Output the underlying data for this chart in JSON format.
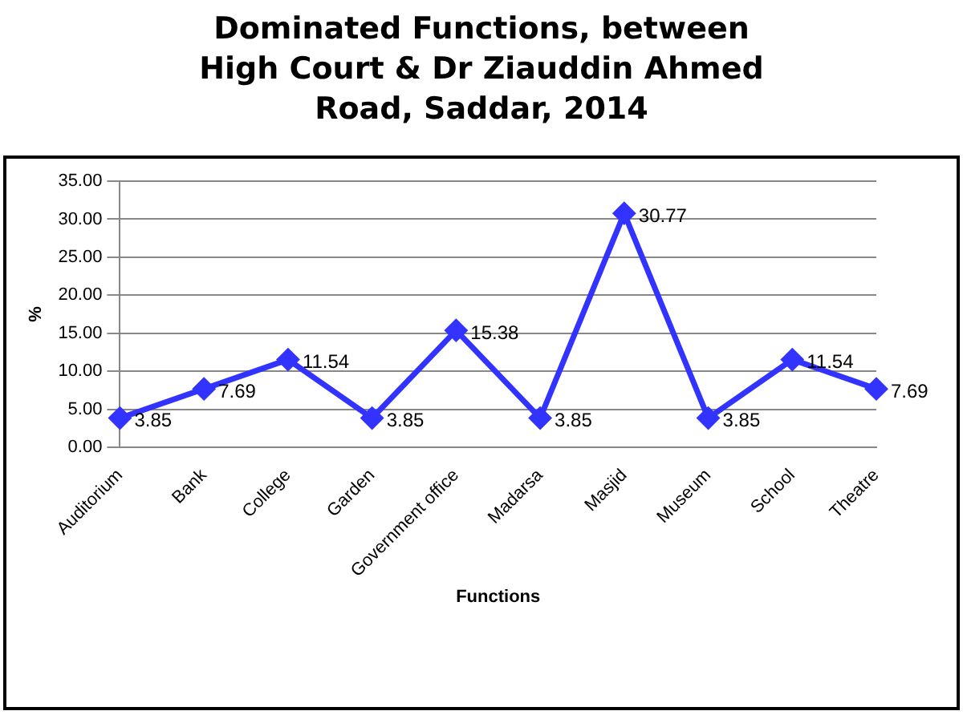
{
  "chart_data": {
    "type": "line",
    "title": "Dominated Functions, between High Court & Dr Ziauddin Ahmed Road, Saddar, 2014",
    "xlabel": "Functions",
    "ylabel": "%",
    "categories": [
      "Auditorium",
      "Bank",
      "College",
      "Garden",
      "Government office",
      "Madarsa",
      "Masjid",
      "Museum",
      "School",
      "Theatre"
    ],
    "series": [
      {
        "color": "#3333ff",
        "values": [
          3.85,
          7.69,
          11.54,
          3.85,
          15.38,
          3.85,
          30.77,
          3.85,
          11.54,
          7.69
        ]
      }
    ],
    "ylim": [
      0,
      35
    ],
    "yticks": [
      {
        "value": 0,
        "label": "0.00"
      },
      {
        "value": 5,
        "label": "5.00"
      },
      {
        "value": 10,
        "label": "10.00"
      },
      {
        "value": 15,
        "label": "15.00"
      },
      {
        "value": 20,
        "label": "20.00"
      },
      {
        "value": 25,
        "label": "25.00"
      },
      {
        "value": 30,
        "label": "30.00"
      },
      {
        "value": 35,
        "label": "35.00"
      }
    ],
    "grid": "y",
    "legend": false,
    "marker": "diamond",
    "line_style": "solid",
    "data_labels": true
  }
}
